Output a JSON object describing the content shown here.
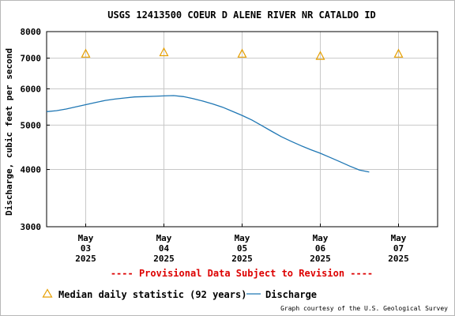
{
  "chart_data": {
    "type": "line",
    "title": "USGS 12413500 COEUR D ALENE RIVER NR CATALDO ID",
    "ylabel": "Discharge, cubic feet per second",
    "xlabel": "",
    "yscale": "log",
    "ylim": [
      3000,
      8000
    ],
    "yticks": [
      {
        "value": 3000,
        "label": "3000"
      },
      {
        "value": 4000,
        "label": "4000"
      },
      {
        "value": 5000,
        "label": "5000"
      },
      {
        "value": 6000,
        "label": "6000"
      },
      {
        "value": 7000,
        "label": "7000"
      },
      {
        "value": 8000,
        "label": "8000"
      }
    ],
    "xlim": [
      "2025-05-02T12:00",
      "2025-05-07T12:00"
    ],
    "xticks": [
      {
        "value": "2025-05-03T00:00",
        "lines": [
          "May",
          "03",
          "2025"
        ]
      },
      {
        "value": "2025-05-04T00:00",
        "lines": [
          "May",
          "04",
          "2025"
        ]
      },
      {
        "value": "2025-05-05T00:00",
        "lines": [
          "May",
          "05",
          "2025"
        ]
      },
      {
        "value": "2025-05-06T00:00",
        "lines": [
          "May",
          "06",
          "2025"
        ]
      },
      {
        "value": "2025-05-07T00:00",
        "lines": [
          "May",
          "07",
          "2025"
        ]
      }
    ],
    "grid": true,
    "series": [
      {
        "name": "Discharge",
        "color": "#1f77b4",
        "style": "line",
        "points": [
          {
            "x": "2025-05-02T12:00",
            "y": 5350
          },
          {
            "x": "2025-05-02T15:00",
            "y": 5375
          },
          {
            "x": "2025-05-02T18:00",
            "y": 5420
          },
          {
            "x": "2025-05-02T21:00",
            "y": 5480
          },
          {
            "x": "2025-05-03T00:00",
            "y": 5540
          },
          {
            "x": "2025-05-03T03:00",
            "y": 5600
          },
          {
            "x": "2025-05-03T06:00",
            "y": 5660
          },
          {
            "x": "2025-05-03T09:00",
            "y": 5700
          },
          {
            "x": "2025-05-03T12:00",
            "y": 5730
          },
          {
            "x": "2025-05-03T15:00",
            "y": 5760
          },
          {
            "x": "2025-05-03T18:00",
            "y": 5770
          },
          {
            "x": "2025-05-03T21:00",
            "y": 5780
          },
          {
            "x": "2025-05-04T00:00",
            "y": 5790
          },
          {
            "x": "2025-05-04T03:00",
            "y": 5800
          },
          {
            "x": "2025-05-04T06:00",
            "y": 5770
          },
          {
            "x": "2025-05-04T09:00",
            "y": 5710
          },
          {
            "x": "2025-05-04T12:00",
            "y": 5640
          },
          {
            "x": "2025-05-04T15:00",
            "y": 5560
          },
          {
            "x": "2025-05-04T18:00",
            "y": 5470
          },
          {
            "x": "2025-05-04T21:00",
            "y": 5360
          },
          {
            "x": "2025-05-05T00:00",
            "y": 5250
          },
          {
            "x": "2025-05-05T03:00",
            "y": 5130
          },
          {
            "x": "2025-05-05T06:00",
            "y": 4990
          },
          {
            "x": "2025-05-05T09:00",
            "y": 4850
          },
          {
            "x": "2025-05-05T12:00",
            "y": 4720
          },
          {
            "x": "2025-05-05T15:00",
            "y": 4610
          },
          {
            "x": "2025-05-05T18:00",
            "y": 4510
          },
          {
            "x": "2025-05-05T21:00",
            "y": 4420
          },
          {
            "x": "2025-05-06T00:00",
            "y": 4340
          },
          {
            "x": "2025-05-06T03:00",
            "y": 4250
          },
          {
            "x": "2025-05-06T06:00",
            "y": 4160
          },
          {
            "x": "2025-05-06T09:00",
            "y": 4070
          },
          {
            "x": "2025-05-06T12:00",
            "y": 3990
          },
          {
            "x": "2025-05-06T15:00",
            "y": 3950
          }
        ]
      },
      {
        "name": "Median daily statistic (92 years)",
        "color": "#e69f00",
        "style": "triangle",
        "points": [
          {
            "x": "2025-05-03T00:00",
            "y": 7150
          },
          {
            "x": "2025-05-04T00:00",
            "y": 7200
          },
          {
            "x": "2025-05-05T00:00",
            "y": 7150
          },
          {
            "x": "2025-05-06T00:00",
            "y": 7070
          },
          {
            "x": "2025-05-07T00:00",
            "y": 7150
          }
        ]
      }
    ],
    "provisional_text": "---- Provisional Data Subject to Revision ----",
    "legend": [
      {
        "label": "Median daily statistic (92 years)",
        "symbol": "triangle",
        "color": "#e69f00"
      },
      {
        "label": "Discharge",
        "symbol": "line",
        "color": "#1f77b4"
      }
    ],
    "credit": "Graph courtesy of the U.S. Geological Survey"
  }
}
